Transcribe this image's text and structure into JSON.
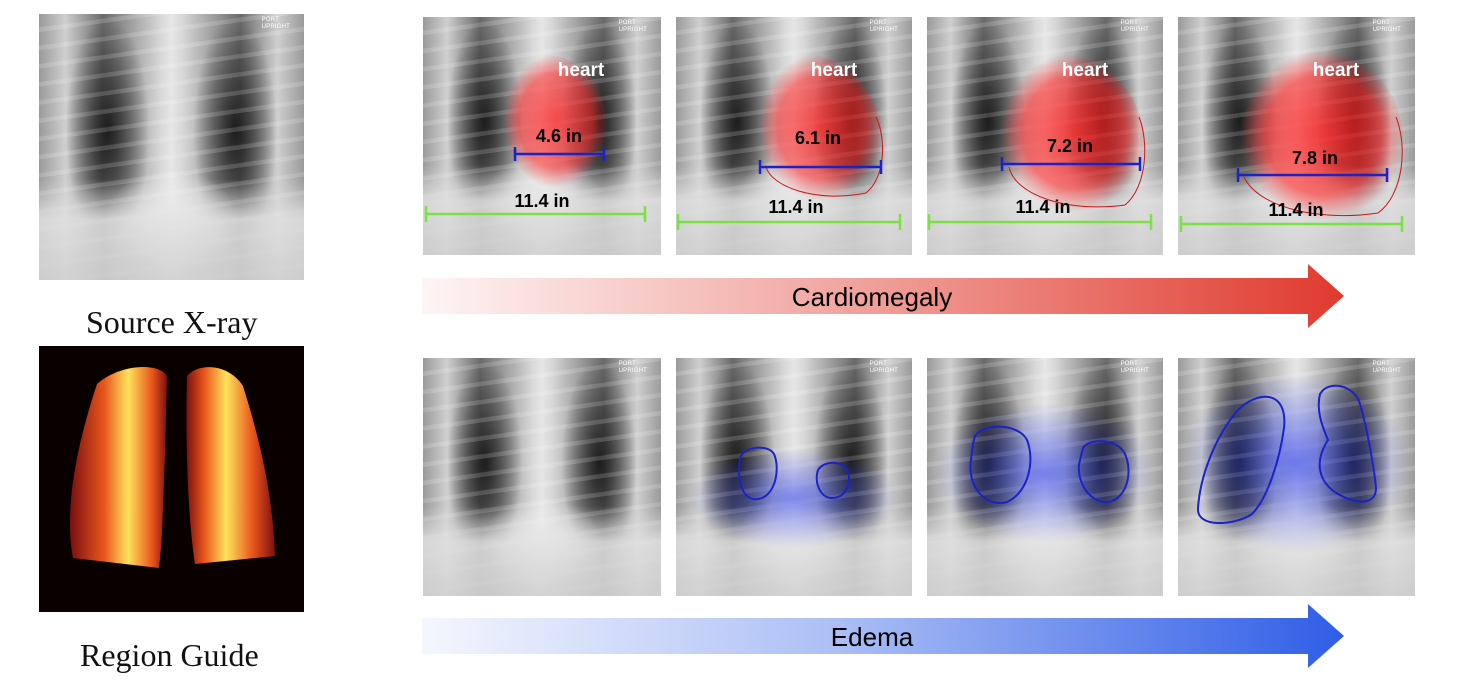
{
  "source_caption": "Source X-ray",
  "guide_caption": "Region Guide",
  "xray_tag": [
    "PORT",
    "UPRIGHT"
  ],
  "cardiomegaly": {
    "arrow_label": "Cardiomegaly",
    "accent_color": "#e03a2e",
    "organ_label": "heart",
    "heart_widths": [
      "4.6 in",
      "6.1 in",
      "7.2 in",
      "7.8 in"
    ],
    "chest_width": "11.4 in"
  },
  "edema": {
    "arrow_label": "Edema",
    "accent_color": "#2f5de6"
  }
}
